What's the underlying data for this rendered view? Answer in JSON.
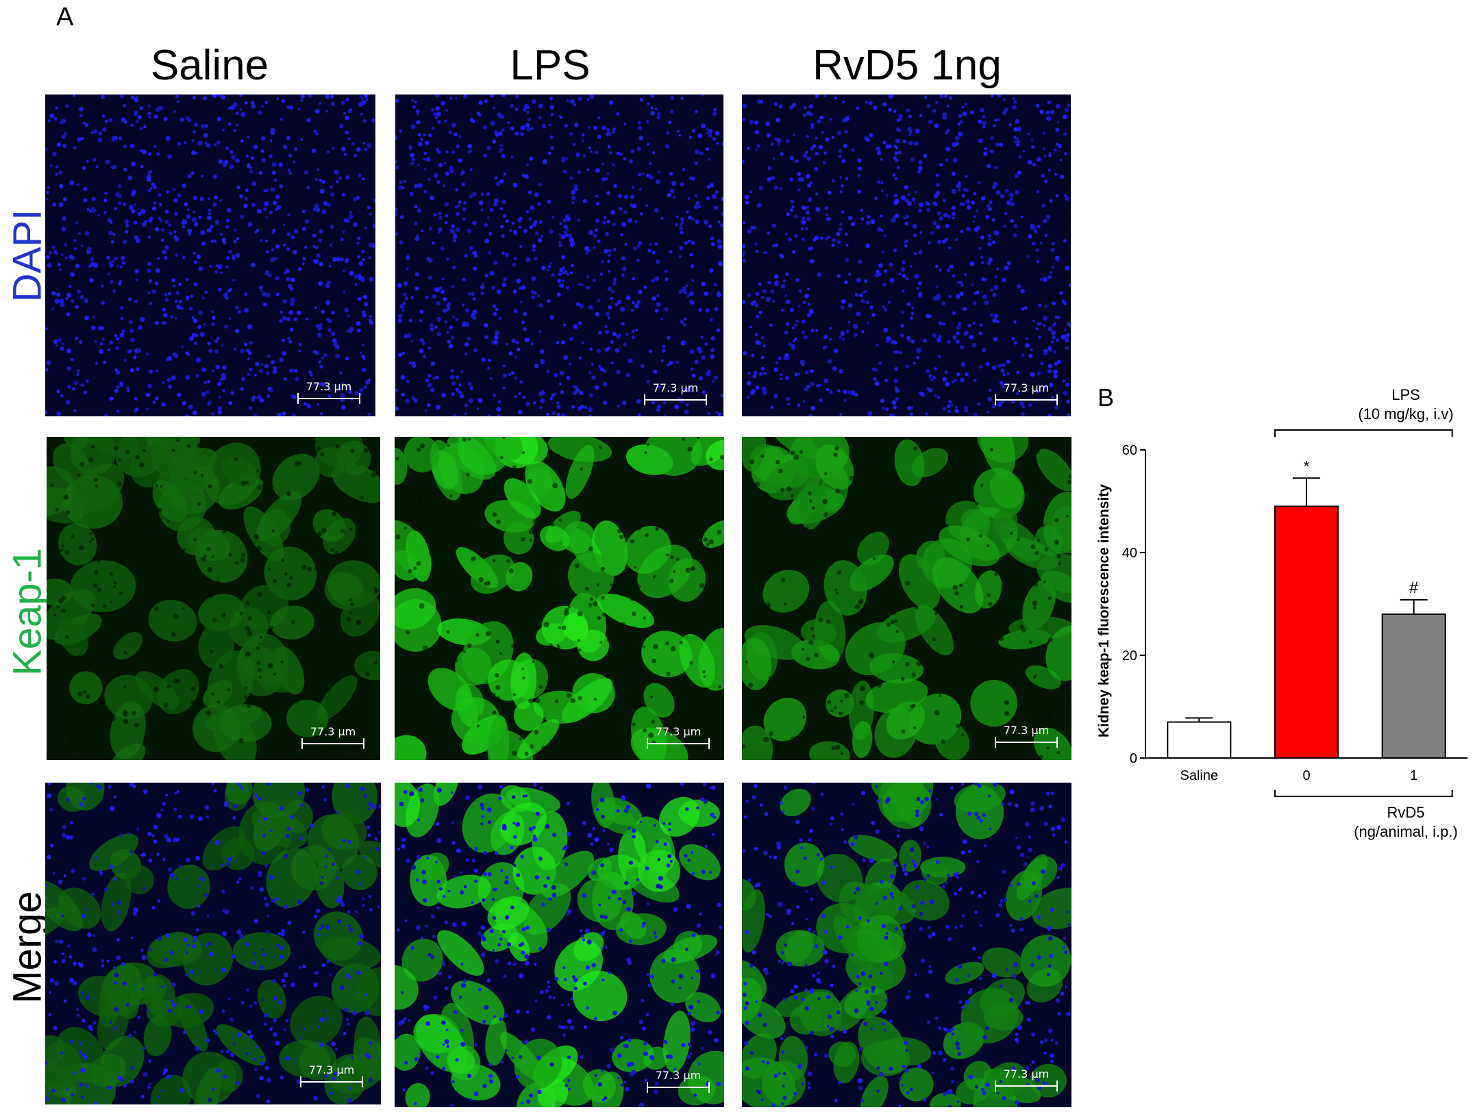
{
  "panel_a": {
    "letter": "A",
    "columns": [
      "Saline",
      "LPS",
      "RvD5 1ng"
    ],
    "rows": [
      {
        "label": "DAPI",
        "color": "#2233cc"
      },
      {
        "label": "Keap-1",
        "color": "#22b04a"
      },
      {
        "label": "Merge",
        "color": "#000000"
      }
    ],
    "scale_bar": "77.3 μm",
    "green_intensity": [
      0.3,
      1.0,
      0.62
    ]
  },
  "panel_b": {
    "letter": "B",
    "lps_label_line1": "LPS",
    "lps_label_line2": "(10 mg/kg, i.v)",
    "rvd5_label_line1": "RvD5",
    "rvd5_label_line2": "(ng/animal, i.p.)"
  },
  "chart_data": {
    "type": "bar",
    "categories": [
      "Saline",
      "0",
      "1"
    ],
    "values": [
      7,
      49,
      28
    ],
    "errors": [
      0.8,
      5.5,
      2.8
    ],
    "colors": [
      "#ffffff",
      "#ff0000",
      "#808080"
    ],
    "annotations": [
      "",
      "*",
      "#"
    ],
    "ylabel": "Kidney keap-1 fluorescence intensity",
    "ylim": [
      0,
      60
    ],
    "yticks": [
      0,
      20,
      40,
      60
    ]
  }
}
